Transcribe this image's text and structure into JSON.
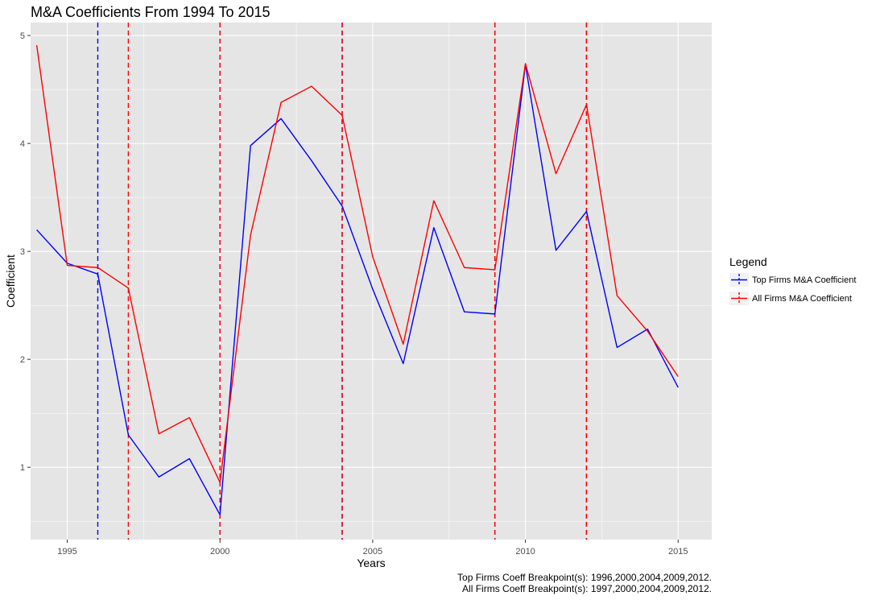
{
  "colors": {
    "panel_bg": "#e5e5e5",
    "grid_major": "#ffffff",
    "top_series": "#0000ff",
    "all_series": "#ff0000"
  },
  "chart_data": {
    "type": "line",
    "title": "M&A Coefficients From 1994 To 2015",
    "xlabel": "Years",
    "ylabel": "Coefficient",
    "xlim": [
      1993.8,
      2016.1
    ],
    "ylim": [
      0.33,
      5.12
    ],
    "x_ticks": [
      1995,
      2000,
      2005,
      2010,
      2015
    ],
    "y_ticks": [
      1,
      2,
      3,
      4,
      5
    ],
    "grid": true,
    "legend_position": "right",
    "legend": {
      "title": "Legend",
      "items": [
        {
          "label": "Top Firms M&A Coefficient",
          "color": "#0000ff"
        },
        {
          "label": "All Firms M&A Coefficient",
          "color": "#ff0000"
        }
      ]
    },
    "x": [
      1994,
      1995,
      1996,
      1997,
      1998,
      1999,
      2000,
      2001,
      2002,
      2003,
      2004,
      2005,
      2006,
      2007,
      2008,
      2009,
      2010,
      2011,
      2012,
      2013,
      2014,
      2015
    ],
    "series": [
      {
        "name": "Top Firms M&A Coefficient",
        "color": "#0000ff",
        "values": [
          3.2,
          2.89,
          2.79,
          1.3,
          0.91,
          1.08,
          0.56,
          3.98,
          4.23,
          3.84,
          3.42,
          2.65,
          1.96,
          3.22,
          2.44,
          2.42,
          4.73,
          3.01,
          3.37,
          2.11,
          2.28,
          1.74
        ],
        "breakpoints": [
          1996,
          2000,
          2004,
          2009,
          2012
        ]
      },
      {
        "name": "All Firms M&A Coefficient",
        "color": "#ff0000",
        "values": [
          4.91,
          2.87,
          2.85,
          2.66,
          1.31,
          1.46,
          0.86,
          3.15,
          4.38,
          4.53,
          4.26,
          2.95,
          2.14,
          3.47,
          2.85,
          2.83,
          4.74,
          3.72,
          4.36,
          2.59,
          2.26,
          1.84
        ],
        "breakpoints": [
          1997,
          2000,
          2004,
          2009,
          2012
        ]
      }
    ],
    "caption_lines": [
      "Top Firms Coeff Breakpoint(s): 1996,2000,2004,2009,2012.",
      "All Firms Coeff Breakpoint(s): 1997,2000,2004,2009,2012."
    ]
  }
}
